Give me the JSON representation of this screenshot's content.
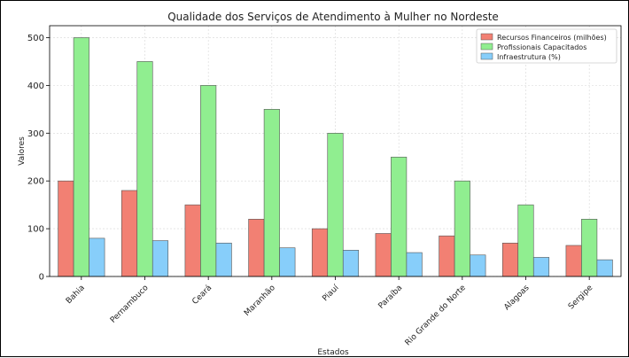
{
  "chart_data": {
    "type": "bar",
    "title": "Qualidade dos Serviços de Atendimento à Mulher no Nordeste",
    "xlabel": "Estados",
    "ylabel": "Valores",
    "ylim": [
      0,
      525
    ],
    "yticks": [
      0,
      100,
      200,
      300,
      400,
      500
    ],
    "grid": true,
    "legend_position": "top-right",
    "categories": [
      "Bahia",
      "Pernambuco",
      "Ceará",
      "Maranhão",
      "Piauí",
      "Paraíba",
      "Rio Grande do Norte",
      "Alagoas",
      "Sergipe"
    ],
    "series": [
      {
        "name": "Recursos Financeiros (milhões)",
        "color": "#f28073",
        "values": [
          200,
          180,
          150,
          120,
          100,
          90,
          85,
          70,
          65
        ]
      },
      {
        "name": "Profissionais Capacitados",
        "color": "#90ee90",
        "values": [
          500,
          450,
          400,
          350,
          300,
          250,
          200,
          150,
          120
        ]
      },
      {
        "name": "Infraestrutura (%)",
        "color": "#87cefa",
        "values": [
          80,
          75,
          70,
          60,
          55,
          50,
          45,
          40,
          35
        ]
      }
    ]
  }
}
